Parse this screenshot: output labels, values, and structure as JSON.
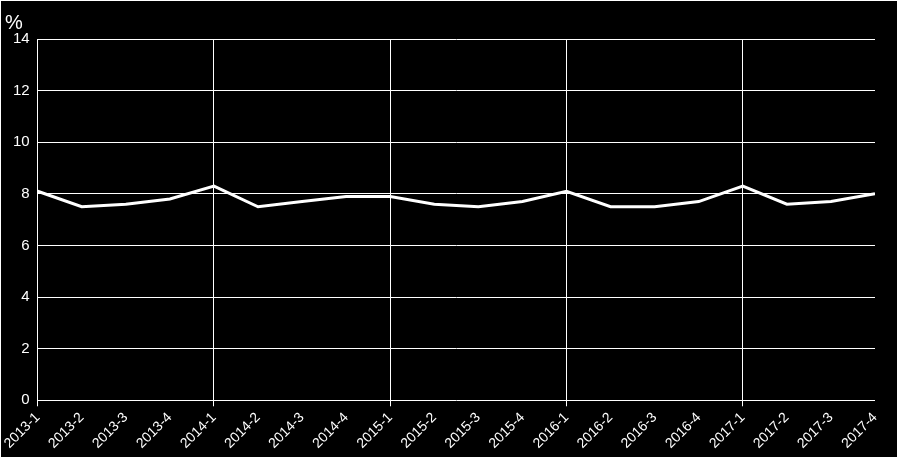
{
  "chart_data": {
    "type": "line",
    "y_label": "%",
    "categories": [
      "2013-1",
      "2013-2",
      "2013-3",
      "2013-4",
      "2014-1",
      "2014-2",
      "2014-3",
      "2014-4",
      "2015-1",
      "2015-2",
      "2015-3",
      "2015-4",
      "2016-1",
      "2016-2",
      "2016-3",
      "2016-4",
      "2017-1",
      "2017-2",
      "2017-3",
      "2017-4"
    ],
    "values": [
      8.1,
      7.5,
      7.6,
      7.8,
      8.3,
      7.5,
      7.7,
      7.9,
      7.9,
      7.6,
      7.5,
      7.7,
      8.1,
      7.5,
      7.5,
      7.7,
      8.3,
      7.6,
      7.7,
      8.0
    ],
    "color": "#ffffff",
    "ylim": [
      0,
      14
    ],
    "yticks": [
      0,
      2,
      4,
      6,
      8,
      10,
      12,
      14
    ],
    "grid": true
  }
}
